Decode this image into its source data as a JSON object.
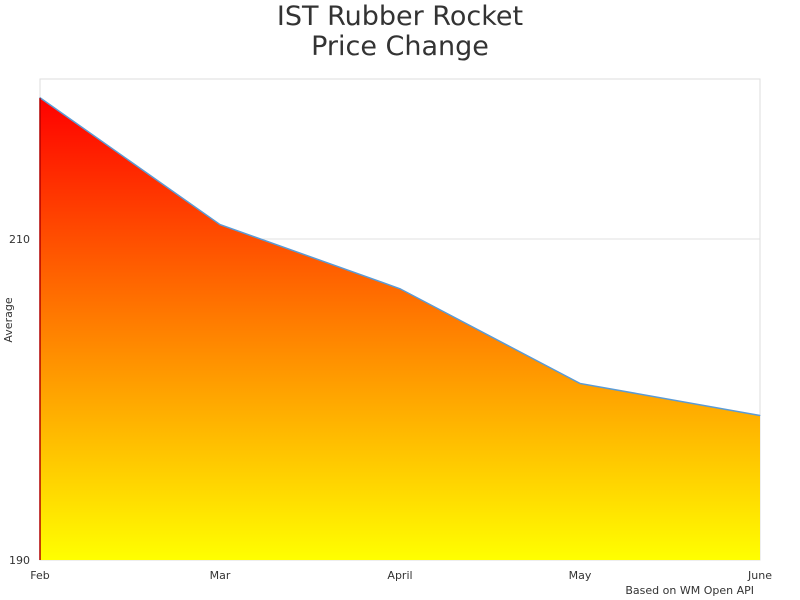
{
  "chart_data": {
    "type": "area",
    "title": [
      "IST Rubber Rocket",
      "Price Change"
    ],
    "ylabel": "Average",
    "xlabel": "",
    "categories": [
      "Feb",
      "Mar",
      "April",
      "May",
      "June"
    ],
    "values": [
      218.8,
      210.9,
      206.9,
      201.0,
      199.0
    ],
    "ylim": [
      190,
      220
    ],
    "yticks": [
      190,
      210
    ],
    "grid": true,
    "legend": "none",
    "fill_gradient": [
      "#ff0000",
      "#ff8000",
      "#ffff00"
    ],
    "line_color": "#5b9bd5",
    "footer": "Based on WM Open API"
  }
}
